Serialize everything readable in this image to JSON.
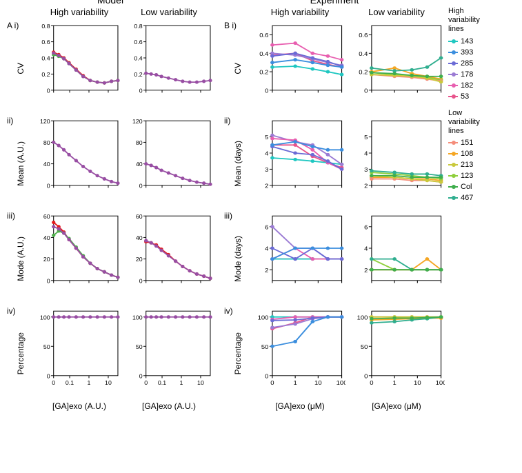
{
  "superTitles": {
    "a": "Model",
    "b": "Experiment"
  },
  "colTitles": {
    "high": "High variability",
    "low": "Low variability"
  },
  "rowLabels": {
    "a": [
      "CV",
      "Mean (A.U.)",
      "Mode (A.U.)",
      "Percentage"
    ],
    "b": [
      "CV",
      "Mean (days)",
      "Mode (days)",
      "Percentage"
    ]
  },
  "rowIds": {
    "a": [
      "A i)",
      "ii)",
      "iii)",
      "iv)"
    ],
    "b": [
      "B i)",
      "ii)",
      "iii)",
      "iv)"
    ]
  },
  "xLabels": {
    "a": "[GA]exo (A.U.)",
    "b": "[GA]exo (μM)"
  },
  "xTicks": {
    "a": {
      "positions": [
        0,
        0.25,
        0.55,
        0.85
      ],
      "labels": [
        "0",
        "0.1",
        "1",
        "10"
      ]
    },
    "b": {
      "positions": [
        0,
        0.33,
        0.66,
        1.0
      ],
      "labels": [
        "0",
        "1",
        "10",
        "100"
      ]
    }
  },
  "modelX": [
    0,
    0.08,
    0.16,
    0.24,
    0.35,
    0.46,
    0.57,
    0.68,
    0.79,
    0.9,
    1.0
  ],
  "modelColors": {
    "red": "#e41a1c",
    "green": "#4daf4a",
    "purple": "#984ea3"
  },
  "expColors": {
    "143": "#1fc7c1",
    "393": "#3b8ede",
    "285": "#6b6bd6",
    "178": "#9b7bd4",
    "182": "#e85fb0",
    "53": "#e8548c",
    "151": "#f58d7a",
    "108": "#f5a623",
    "213": "#c9c93b",
    "123": "#8fcf3c",
    "Col": "#3fae4d",
    "467": "#2fae8f"
  },
  "panelsA": {
    "cv": {
      "ylim": [
        0,
        0.8
      ],
      "yticks": [
        0,
        0.2,
        0.4,
        0.6,
        0.8
      ],
      "high": {
        "red": [
          0.47,
          0.44,
          0.4,
          0.34,
          0.26,
          0.18,
          0.12,
          0.1,
          0.09,
          0.11,
          0.12
        ],
        "green": [
          0.44,
          0.42,
          0.39,
          0.33,
          0.25,
          0.17,
          0.12,
          0.1,
          0.09,
          0.11,
          0.12
        ],
        "purple": [
          0.46,
          0.43,
          0.39,
          0.33,
          0.25,
          0.17,
          0.12,
          0.1,
          0.09,
          0.11,
          0.12
        ]
      },
      "low": {
        "purple": [
          0.21,
          0.2,
          0.19,
          0.17,
          0.15,
          0.13,
          0.11,
          0.1,
          0.1,
          0.11,
          0.12
        ]
      }
    },
    "mean": {
      "ylim": [
        0,
        120
      ],
      "yticks": [
        0,
        40,
        80,
        120
      ],
      "high": {
        "purple": [
          80,
          74,
          66,
          57,
          46,
          35,
          26,
          18,
          12,
          7,
          4
        ]
      },
      "low": {
        "purple": [
          40,
          37,
          33,
          28,
          23,
          18,
          13,
          9,
          6,
          4,
          2
        ]
      }
    },
    "mode": {
      "ylim": [
        0,
        60
      ],
      "yticks": [
        0,
        20,
        40,
        60
      ],
      "high": {
        "red": [
          54,
          50,
          45,
          38,
          30,
          22,
          16,
          11,
          8,
          5,
          3
        ],
        "green": [
          42,
          46,
          44,
          39,
          31,
          23,
          16,
          11,
          8,
          5,
          3
        ],
        "purple": [
          50,
          48,
          44,
          38,
          30,
          22,
          16,
          11,
          8,
          5,
          3
        ]
      },
      "low": {
        "red": [
          36,
          35,
          33,
          29,
          24,
          18,
          13,
          9,
          6,
          4,
          2
        ],
        "purple": [
          37,
          35,
          32,
          28,
          23,
          18,
          13,
          9,
          6,
          4,
          2
        ]
      }
    },
    "perc": {
      "ylim": [
        0,
        110
      ],
      "yticks": [
        0,
        50,
        100
      ],
      "high": {
        "purple": [
          100,
          100,
          100,
          100,
          100,
          100,
          100,
          100,
          100,
          100,
          100
        ]
      },
      "low": {
        "purple": [
          100,
          100,
          100,
          100,
          100,
          100,
          100,
          100,
          100,
          100,
          100
        ]
      }
    }
  },
  "expX": [
    0,
    0.33,
    0.58,
    0.8,
    1.0
  ],
  "panelsB": {
    "cv": {
      "ylim": [
        0,
        0.7
      ],
      "yticks": [
        0,
        0.2,
        0.4,
        0.6
      ],
      "high": {
        "143": [
          0.25,
          0.26,
          0.23,
          0.2,
          0.17
        ],
        "393": [
          0.3,
          0.33,
          0.3,
          0.27,
          0.25
        ],
        "285": [
          0.37,
          0.4,
          0.35,
          0.31,
          0.26
        ],
        "178": [
          0.4,
          0.38,
          0.34,
          0.3,
          0.27
        ],
        "182": [
          0.49,
          0.51,
          0.4,
          0.37,
          0.33
        ],
        "53": [
          0.38,
          0.4,
          0.32,
          0.28,
          0.25
        ]
      },
      "low": {
        "151": [
          0.17,
          0.15,
          0.14,
          0.12,
          0.1
        ],
        "108": [
          0.2,
          0.24,
          0.18,
          0.15,
          0.12
        ],
        "213": [
          0.17,
          0.16,
          0.15,
          0.13,
          0.09
        ],
        "123": [
          0.19,
          0.17,
          0.16,
          0.14,
          0.11
        ],
        "Col": [
          0.19,
          0.18,
          0.16,
          0.15,
          0.15
        ],
        "467": [
          0.24,
          0.21,
          0.22,
          0.25,
          0.35
        ]
      }
    },
    "mean": {
      "ylim": [
        2,
        6
      ],
      "yticks": [
        2,
        3,
        4,
        5
      ],
      "high": {
        "143": [
          3.7,
          3.6,
          3.5,
          3.4,
          3.3
        ],
        "393": [
          4.5,
          4.7,
          4.4,
          4.2,
          4.2
        ],
        "285": [
          4.4,
          4.0,
          3.9,
          3.5,
          3.0
        ],
        "178": [
          5.1,
          4.7,
          4.5,
          3.9,
          3.3
        ],
        "182": [
          4.9,
          4.8,
          4.2,
          3.4,
          3.0
        ],
        "53": [
          4.5,
          4.5,
          3.8,
          3.4,
          3.1
        ]
      },
      "low": {
        "151": [
          2.4,
          2.4,
          2.3,
          2.3,
          2.2
        ],
        "108": [
          2.5,
          2.5,
          2.4,
          2.4,
          2.3
        ],
        "213": [
          2.6,
          2.5,
          2.4,
          2.3,
          2.2
        ],
        "123": [
          2.8,
          2.7,
          2.6,
          2.5,
          2.4
        ],
        "Col": [
          2.6,
          2.6,
          2.5,
          2.5,
          2.5
        ],
        "467": [
          2.9,
          2.8,
          2.7,
          2.7,
          2.6
        ]
      }
    },
    "mode": {
      "ylim": [
        1,
        7
      ],
      "yticks": [
        2,
        4,
        6
      ],
      "high": {
        "143": [
          3,
          3,
          3,
          3,
          3
        ],
        "393": [
          3,
          4,
          4,
          4,
          4
        ],
        "285": [
          4,
          3,
          4,
          3,
          3
        ],
        "178": [
          6,
          4,
          4,
          3,
          3
        ],
        "182": [
          3,
          4,
          3,
          3,
          3
        ],
        "53": [
          3,
          3,
          3,
          3,
          3
        ]
      },
      "low": {
        "151": [
          2,
          2,
          2,
          2,
          2
        ],
        "108": [
          2,
          2,
          2,
          3,
          2
        ],
        "213": [
          2,
          2,
          2,
          2,
          2
        ],
        "123": [
          3,
          2,
          2,
          2,
          2
        ],
        "Col": [
          2,
          2,
          2,
          2,
          2
        ],
        "467": [
          3,
          3,
          2,
          2,
          2
        ]
      }
    },
    "perc": {
      "ylim": [
        0,
        110
      ],
      "yticks": [
        0,
        50,
        100
      ],
      "high": {
        "143": [
          100,
          100,
          100,
          100,
          100
        ],
        "393": [
          50,
          58,
          92,
          100,
          100
        ],
        "285": [
          94,
          95,
          98,
          100,
          100
        ],
        "178": [
          82,
          88,
          97,
          100,
          100
        ],
        "182": [
          96,
          100,
          100,
          100,
          100
        ],
        "53": [
          80,
          90,
          100,
          100,
          100
        ]
      },
      "low": {
        "151": [
          100,
          100,
          100,
          100,
          100
        ],
        "108": [
          95,
          96,
          97,
          98,
          98
        ],
        "213": [
          100,
          100,
          100,
          100,
          100
        ],
        "123": [
          100,
          100,
          100,
          100,
          100
        ],
        "Col": [
          97,
          98,
          98,
          99,
          100
        ],
        "467": [
          90,
          92,
          95,
          97,
          100
        ]
      }
    }
  },
  "legend": {
    "highTitle": "High\nvariability\nlines",
    "lowTitle": "Low\nvariability\nlines",
    "highKeys": [
      "143",
      "393",
      "285",
      "178",
      "182",
      "53"
    ],
    "lowKeys": [
      "151",
      "108",
      "213",
      "123",
      "Col",
      "467"
    ]
  },
  "style": {
    "axisColor": "#000000",
    "lineWidth": 1.5,
    "markerSize": 3.5,
    "fontSizeAxis": 9
  }
}
